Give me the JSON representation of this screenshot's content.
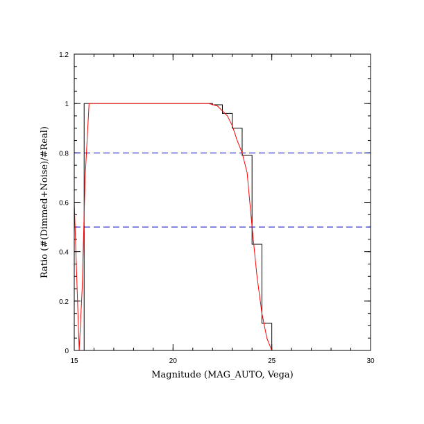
{
  "chart_data": {
    "type": "line",
    "title": "",
    "xlabel": "Magnitude (MAG_AUTO, Vega)",
    "ylabel": "Ratio (#(Dimmed+Noise)/#Real)",
    "xlim": [
      15,
      30
    ],
    "ylim": [
      0,
      1.2
    ],
    "x_ticks": [
      15,
      20,
      25,
      30
    ],
    "y_ticks": [
      0,
      0.2,
      0.4,
      0.6,
      0.8,
      1,
      1.2
    ],
    "x_tick_labels": [
      "15",
      "20",
      "25",
      "30"
    ],
    "y_tick_labels": [
      "0",
      "0.2",
      "0.4",
      "0.6",
      "0.8",
      "1",
      "1.2"
    ],
    "grid": false,
    "series": [
      {
        "style": "histogram-step",
        "color": "#000000",
        "bin_width": 0.5,
        "bin_starts": [
          15,
          15.5,
          16,
          16.5,
          17,
          17.5,
          18,
          18.5,
          19,
          19.5,
          20,
          20.5,
          21,
          21.5,
          22,
          22.5,
          23,
          23.5,
          24,
          24.5,
          25,
          25.5,
          26,
          26.5,
          27,
          27.5,
          28,
          28.5,
          29,
          29.5
        ],
        "values": [
          0,
          1,
          1,
          1,
          1,
          1,
          1,
          1,
          1,
          1,
          1,
          1,
          1,
          1,
          0.995,
          0.96,
          0.9,
          0.79,
          0.43,
          0.11,
          0,
          0,
          0,
          0,
          0,
          0,
          0,
          0,
          0,
          0
        ]
      },
      {
        "style": "smooth-fit",
        "color": "#ff0000",
        "x": [
          15.0,
          15.25,
          15.4,
          15.55,
          15.75,
          16.0,
          17.0,
          18.0,
          19.0,
          20.0,
          21.0,
          21.8,
          22.25,
          22.75,
          23.0,
          23.25,
          23.5,
          23.75,
          24.0,
          24.25,
          24.5,
          24.75,
          25.0,
          25.25,
          26.0,
          27.0,
          28.0,
          29.0,
          30.0
        ],
        "y": [
          0.6,
          0.0,
          0.25,
          0.7,
          1.0,
          1.0,
          1.0,
          1.0,
          1.0,
          1.0,
          1.0,
          1.0,
          0.99,
          0.95,
          0.91,
          0.85,
          0.8,
          0.72,
          0.5,
          0.3,
          0.15,
          0.05,
          0.0,
          0.0,
          0.0,
          0.0,
          0.0,
          0.0,
          0.0
        ]
      }
    ],
    "reference_lines": [
      {
        "orientation": "horizontal",
        "y": 0.8,
        "color": "#0000cc",
        "dash": "dashed"
      },
      {
        "orientation": "horizontal",
        "y": 0.5,
        "color": "#0000cc",
        "dash": "dashed"
      }
    ]
  }
}
